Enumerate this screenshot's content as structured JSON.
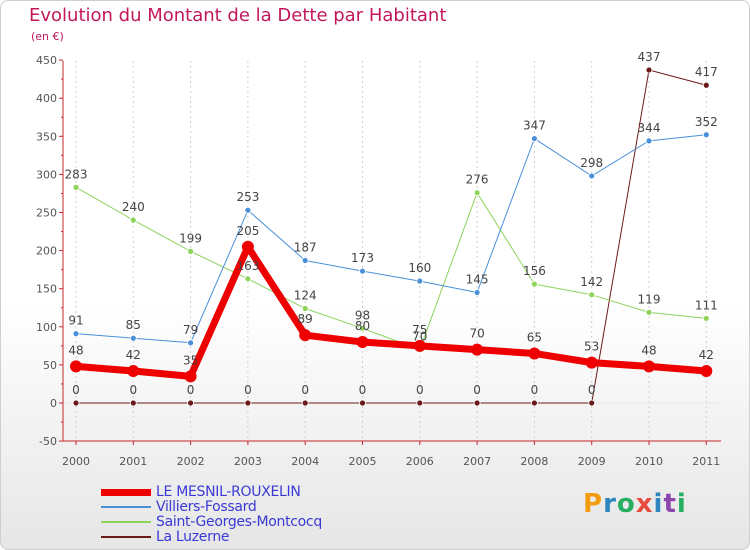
{
  "title": "Evolution du Montant de la Dette par Habitant",
  "subtitle": "(en €)",
  "brand": {
    "text": "Proxiti",
    "colors": [
      "#f39c12",
      "#2e86c1",
      "#27ae60",
      "#e74c3c",
      "#2e86c1",
      "#8e44ad",
      "#27ae60"
    ]
  },
  "chart_data": {
    "type": "line",
    "title": "Evolution du Montant de la Dette par Habitant",
    "ylabel": "(en €)",
    "x": [
      "2000",
      "2001",
      "2002",
      "2003",
      "2004",
      "2005",
      "2006",
      "2007",
      "2008",
      "2009",
      "2010",
      "2011"
    ],
    "ylim": [
      -50,
      450
    ],
    "yticks": [
      "-50",
      "0",
      "50",
      "100",
      "150",
      "200",
      "250",
      "300",
      "350",
      "400",
      "450"
    ],
    "grid": "x-dashed",
    "legend_position": "bottom-left",
    "series": [
      {
        "name": "La Luzerne",
        "color": "#6b1a1a",
        "width": 1,
        "values": [
          0,
          0,
          0,
          0,
          0,
          0,
          0,
          0,
          0,
          0,
          437,
          417
        ],
        "labels": [
          "0",
          "0",
          "0",
          "0",
          "0",
          "0",
          "0",
          "0",
          "0",
          "0",
          "437",
          "417"
        ]
      },
      {
        "name": "Saint-Georges-Montcocq",
        "color": "#8ed35a",
        "width": 1,
        "values": [
          283,
          240,
          199,
          163,
          124,
          98,
          70,
          276,
          156,
          142,
          119,
          111
        ],
        "labels": [
          "283",
          "240",
          "199",
          "163",
          "124",
          "98",
          "70",
          "276",
          "156",
          "142",
          "119",
          "111"
        ]
      },
      {
        "name": "Villiers-Fossard",
        "color": "#4a90d9",
        "width": 1,
        "values": [
          91,
          85,
          79,
          253,
          187,
          173,
          160,
          145,
          347,
          298,
          344,
          352
        ],
        "labels": [
          "91",
          "85",
          "79",
          "253",
          "187",
          "173",
          "160",
          "145",
          "347",
          "298",
          "344",
          "352"
        ]
      },
      {
        "name": "LE MESNIL-ROUXELIN",
        "color": "#ee0000",
        "width": 7,
        "values": [
          48,
          42,
          35,
          205,
          89,
          80,
          75,
          70,
          65,
          53,
          48,
          42
        ],
        "labels": [
          "48",
          "42",
          "35",
          "205",
          "89",
          "80",
          "75",
          "70",
          "65",
          "53",
          "48",
          "42"
        ]
      }
    ]
  },
  "legend": [
    {
      "name": "LE MESNIL-ROUXELIN",
      "color": "#ee0000",
      "width": 7
    },
    {
      "name": "Villiers-Fossard",
      "color": "#4a90d9",
      "width": 2
    },
    {
      "name": "Saint-Georges-Montcocq",
      "color": "#8ed35a",
      "width": 2
    },
    {
      "name": "La Luzerne",
      "color": "#6b1a1a",
      "width": 2
    }
  ]
}
